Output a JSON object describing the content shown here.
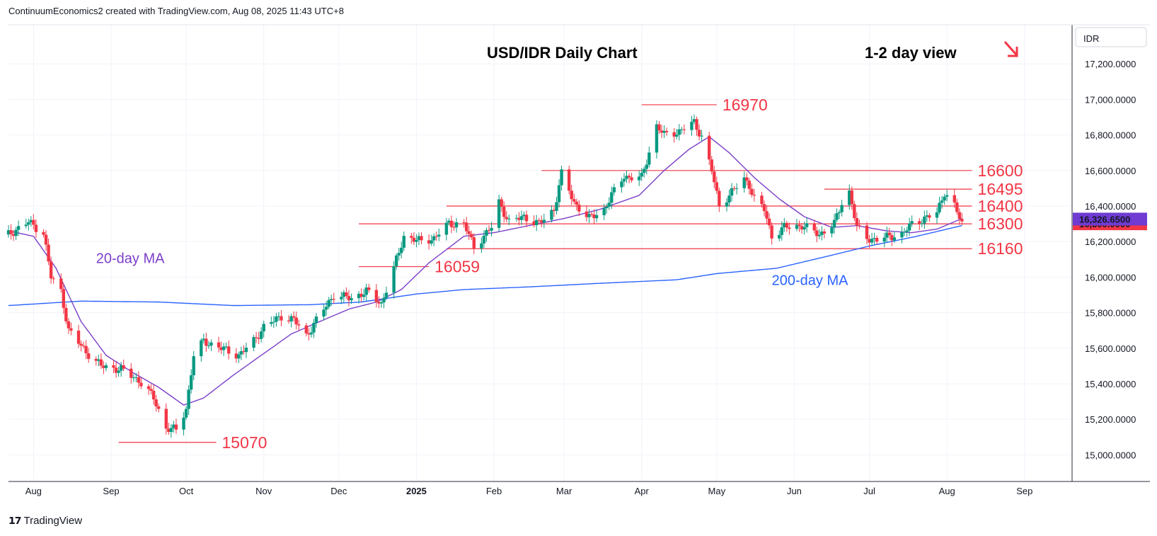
{
  "header": {
    "attribution": "ContinuumEconomics2 created with TradingView.com, Aug 08, 2025 11:43 UTC+8"
  },
  "footer": {
    "brand": "TradingView"
  },
  "colors": {
    "up": "#089981",
    "down": "#f23645",
    "ma20": "#7b3fc9",
    "ma200": "#2962ff",
    "annotation": "#f23645",
    "arrow": "#f23645"
  },
  "chart_data": {
    "type": "candlestick",
    "title": "USD/IDR Daily Chart",
    "subtitle": "1-2 day view",
    "direction_arrow": "down-right",
    "currency_label": "IDR",
    "ylim": [
      14850,
      17420
    ],
    "y_ticks": [
      15000,
      15200,
      15400,
      15600,
      15800,
      16000,
      16200,
      16400,
      16600,
      16800,
      17000,
      17200
    ],
    "y_tick_labels": [
      "15,000.0000",
      "15,200.0000",
      "15,400.0000",
      "15,600.0000",
      "15,800.0000",
      "16,000.0000",
      "16,200.0000",
      "16,400.0000",
      "16,600.0000",
      "16,800.0000",
      "17,000.0000",
      "17,200.0000"
    ],
    "xlim": [
      "2024-07-22",
      "2025-09-20"
    ],
    "x_ticks": [
      {
        "date": "2024-08-01",
        "label": "Aug",
        "bold": false
      },
      {
        "date": "2024-09-01",
        "label": "Sep",
        "bold": false
      },
      {
        "date": "2024-10-01",
        "label": "Oct",
        "bold": false
      },
      {
        "date": "2024-11-01",
        "label": "Nov",
        "bold": false
      },
      {
        "date": "2024-12-01",
        "label": "Dec",
        "bold": false
      },
      {
        "date": "2025-01-01",
        "label": "2025",
        "bold": true
      },
      {
        "date": "2025-02-01",
        "label": "Feb",
        "bold": false
      },
      {
        "date": "2025-03-01",
        "label": "Mar",
        "bold": false
      },
      {
        "date": "2025-04-01",
        "label": "Apr",
        "bold": false
      },
      {
        "date": "2025-05-01",
        "label": "May",
        "bold": false
      },
      {
        "date": "2025-06-01",
        "label": "Jun",
        "bold": false
      },
      {
        "date": "2025-07-01",
        "label": "Jul",
        "bold": false
      },
      {
        "date": "2025-08-01",
        "label": "Aug",
        "bold": false
      },
      {
        "date": "2025-09-01",
        "label": "Sep",
        "bold": false
      }
    ],
    "price_anchors": [
      [
        "2024-07-22",
        16240
      ],
      [
        "2024-07-30",
        16310
      ],
      [
        "2024-08-05",
        16250
      ],
      [
        "2024-08-08",
        16000
      ],
      [
        "2024-08-12",
        15920
      ],
      [
        "2024-08-15",
        15700
      ],
      [
        "2024-08-22",
        15580
      ],
      [
        "2024-08-28",
        15500
      ],
      [
        "2024-09-05",
        15480
      ],
      [
        "2024-09-12",
        15420
      ],
      [
        "2024-09-18",
        15320
      ],
      [
        "2024-09-23",
        15150
      ],
      [
        "2024-09-27",
        15140
      ],
      [
        "2024-10-01",
        15260
      ],
      [
        "2024-10-04",
        15560
      ],
      [
        "2024-10-08",
        15640
      ],
      [
        "2024-10-15",
        15600
      ],
      [
        "2024-10-22",
        15560
      ],
      [
        "2024-10-28",
        15640
      ],
      [
        "2024-11-01",
        15720
      ],
      [
        "2024-11-08",
        15780
      ],
      [
        "2024-11-13",
        15760
      ],
      [
        "2024-11-18",
        15670
      ],
      [
        "2024-11-25",
        15820
      ],
      [
        "2024-11-29",
        15900
      ],
      [
        "2024-12-06",
        15880
      ],
      [
        "2024-12-12",
        15920
      ],
      [
        "2024-12-18",
        15850
      ],
      [
        "2024-12-23",
        16050
      ],
      [
        "2024-12-27",
        16230
      ],
      [
        "2025-01-03",
        16200
      ],
      [
        "2025-01-08",
        16220
      ],
      [
        "2025-01-14",
        16300
      ],
      [
        "2025-01-20",
        16300
      ],
      [
        "2025-01-24",
        16170
      ],
      [
        "2025-01-31",
        16280
      ],
      [
        "2025-02-03",
        16420
      ],
      [
        "2025-02-07",
        16310
      ],
      [
        "2025-02-13",
        16340
      ],
      [
        "2025-02-19",
        16300
      ],
      [
        "2025-02-25",
        16380
      ],
      [
        "2025-02-28",
        16580
      ],
      [
        "2025-03-05",
        16420
      ],
      [
        "2025-03-11",
        16330
      ],
      [
        "2025-03-17",
        16380
      ],
      [
        "2025-03-20",
        16460
      ],
      [
        "2025-03-25",
        16570
      ],
      [
        "2025-03-27",
        16560
      ],
      [
        "2025-04-01",
        16560
      ],
      [
        "2025-04-07",
        16850
      ],
      [
        "2025-04-10",
        16800
      ],
      [
        "2025-04-16",
        16820
      ],
      [
        "2025-04-22",
        16870
      ],
      [
        "2025-04-25",
        16790
      ],
      [
        "2025-04-29",
        16600
      ],
      [
        "2025-05-02",
        16400
      ],
      [
        "2025-05-07",
        16480
      ],
      [
        "2025-05-12",
        16550
      ],
      [
        "2025-05-14",
        16520
      ],
      [
        "2025-05-16",
        16440
      ],
      [
        "2025-05-20",
        16380
      ],
      [
        "2025-05-23",
        16230
      ],
      [
        "2025-05-28",
        16280
      ],
      [
        "2025-06-04",
        16290
      ],
      [
        "2025-06-11",
        16240
      ],
      [
        "2025-06-17",
        16300
      ],
      [
        "2025-06-20",
        16420
      ],
      [
        "2025-06-23",
        16480
      ],
      [
        "2025-06-26",
        16280
      ],
      [
        "2025-06-30",
        16220
      ],
      [
        "2025-07-04",
        16210
      ],
      [
        "2025-07-09",
        16230
      ],
      [
        "2025-07-14",
        16240
      ],
      [
        "2025-07-18",
        16300
      ],
      [
        "2025-07-23",
        16330
      ],
      [
        "2025-07-28",
        16360
      ],
      [
        "2025-07-31",
        16480
      ],
      [
        "2025-08-04",
        16400
      ],
      [
        "2025-08-07",
        16300
      ]
    ],
    "ma20_anchors": [
      [
        "2024-07-22",
        16260
      ],
      [
        "2024-08-01",
        16230
      ],
      [
        "2024-08-10",
        16050
      ],
      [
        "2024-08-20",
        15750
      ],
      [
        "2024-08-30",
        15560
      ],
      [
        "2024-09-10",
        15460
      ],
      [
        "2024-09-20",
        15380
      ],
      [
        "2024-09-30",
        15280
      ],
      [
        "2024-10-08",
        15320
      ],
      [
        "2024-10-20",
        15450
      ],
      [
        "2024-11-01",
        15570
      ],
      [
        "2024-11-12",
        15680
      ],
      [
        "2024-11-25",
        15760
      ],
      [
        "2024-12-05",
        15820
      ],
      [
        "2024-12-16",
        15860
      ],
      [
        "2024-12-26",
        15930
      ],
      [
        "2025-01-06",
        16080
      ],
      [
        "2025-01-20",
        16230
      ],
      [
        "2025-02-01",
        16250
      ],
      [
        "2025-02-15",
        16290
      ],
      [
        "2025-03-01",
        16330
      ],
      [
        "2025-03-15",
        16380
      ],
      [
        "2025-03-31",
        16460
      ],
      [
        "2025-04-10",
        16600
      ],
      [
        "2025-04-20",
        16720
      ],
      [
        "2025-04-28",
        16790
      ],
      [
        "2025-05-06",
        16700
      ],
      [
        "2025-05-16",
        16560
      ],
      [
        "2025-05-26",
        16440
      ],
      [
        "2025-06-05",
        16340
      ],
      [
        "2025-06-16",
        16280
      ],
      [
        "2025-06-26",
        16290
      ],
      [
        "2025-07-08",
        16260
      ],
      [
        "2025-07-18",
        16250
      ],
      [
        "2025-07-28",
        16270
      ],
      [
        "2025-08-07",
        16330
      ]
    ],
    "ma200_anchors": [
      [
        "2024-07-22",
        15840
      ],
      [
        "2024-08-20",
        15865
      ],
      [
        "2024-09-20",
        15860
      ],
      [
        "2024-10-20",
        15840
      ],
      [
        "2024-11-20",
        15845
      ],
      [
        "2024-12-10",
        15860
      ],
      [
        "2025-01-01",
        15905
      ],
      [
        "2025-01-20",
        15930
      ],
      [
        "2025-02-15",
        15945
      ],
      [
        "2025-03-15",
        15965
      ],
      [
        "2025-04-15",
        15985
      ],
      [
        "2025-05-01",
        16020
      ],
      [
        "2025-05-25",
        16050
      ],
      [
        "2025-06-15",
        16120
      ],
      [
        "2025-07-01",
        16175
      ],
      [
        "2025-07-20",
        16230
      ],
      [
        "2025-08-07",
        16290
      ]
    ],
    "last_prices": [
      {
        "value": 16300,
        "label": "16,300.0000",
        "color": "#f23645"
      },
      {
        "value": 16326.65,
        "label": "16,326.6500",
        "color": "#6f3bd2"
      }
    ],
    "levels": [
      {
        "value": 16970,
        "label": "16970",
        "from": "2025-04-01",
        "to": "2025-05-01"
      },
      {
        "value": 16600,
        "label": "16600",
        "from": "2025-02-20",
        "to": "2025-08-11"
      },
      {
        "value": 16495,
        "label": "16495",
        "from": "2025-06-13",
        "to": "2025-08-11"
      },
      {
        "value": 16400,
        "label": "16400",
        "from": "2025-01-13",
        "to": "2025-08-11"
      },
      {
        "value": 16300,
        "label": "16300",
        "from": "2024-12-09",
        "to": "2025-08-11"
      },
      {
        "value": 16160,
        "label": "16160",
        "from": "2025-01-13",
        "to": "2025-08-11"
      },
      {
        "value": 16059,
        "label": "16059",
        "from": "2024-12-09",
        "to": "2025-01-06"
      },
      {
        "value": 15070,
        "label": "15070",
        "from": "2024-09-04",
        "to": "2024-10-13"
      }
    ],
    "ma_labels": [
      {
        "text": "20-day MA",
        "color": "#7b3fc9",
        "date": "2024-08-26",
        "value": 16080
      },
      {
        "text": "200-day MA",
        "color": "#2962ff",
        "date": "2025-05-23",
        "value": 15955
      }
    ]
  }
}
